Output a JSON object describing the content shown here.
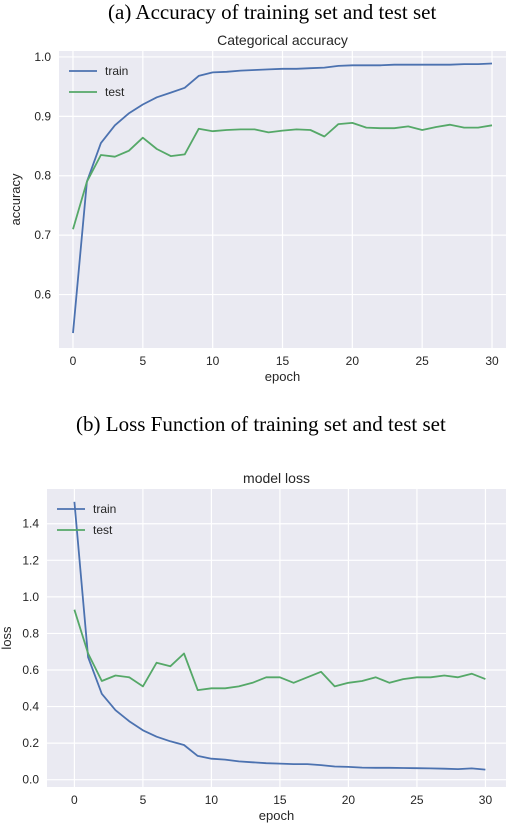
{
  "captions": {
    "a": "(a) Accuracy of training set and test set",
    "b": "(b)   Loss Function of training set and test set"
  },
  "colors": {
    "train": "#4c72b0",
    "test": "#55a868",
    "plot_bg": "#eaeaf2",
    "grid": "#ffffff"
  },
  "chart_data": [
    {
      "type": "line",
      "title": "Categorical accuracy",
      "xlabel": "epoch",
      "ylabel": "accuracy",
      "xlim": [
        -1,
        31
      ],
      "ylim": [
        0.51,
        1.01
      ],
      "xticks": [
        0,
        5,
        10,
        15,
        20,
        25,
        30
      ],
      "yticks": [
        0.6,
        0.7,
        0.8,
        0.9,
        1.0
      ],
      "ytick_labels": [
        "0.6",
        "0.7",
        "0.8",
        "0.9",
        "1.0"
      ],
      "grid": true,
      "legend": "top-left",
      "x": [
        0,
        1,
        2,
        3,
        4,
        5,
        6,
        7,
        8,
        9,
        10,
        11,
        12,
        13,
        14,
        15,
        16,
        17,
        18,
        19,
        20,
        21,
        22,
        23,
        24,
        25,
        26,
        27,
        28,
        29,
        30
      ],
      "series": [
        {
          "name": "train",
          "values": [
            0.535,
            0.79,
            0.855,
            0.885,
            0.905,
            0.92,
            0.932,
            0.94,
            0.948,
            0.968,
            0.974,
            0.975,
            0.977,
            0.978,
            0.979,
            0.98,
            0.98,
            0.981,
            0.982,
            0.985,
            0.986,
            0.986,
            0.986,
            0.987,
            0.987,
            0.987,
            0.987,
            0.987,
            0.988,
            0.988,
            0.989
          ]
        },
        {
          "name": "test",
          "values": [
            0.71,
            0.79,
            0.835,
            0.832,
            0.842,
            0.864,
            0.845,
            0.833,
            0.836,
            0.879,
            0.875,
            0.877,
            0.878,
            0.878,
            0.873,
            0.876,
            0.878,
            0.877,
            0.866,
            0.887,
            0.889,
            0.881,
            0.88,
            0.88,
            0.883,
            0.877,
            0.882,
            0.886,
            0.881,
            0.881,
            0.885
          ]
        }
      ]
    },
    {
      "type": "line",
      "title": "model loss",
      "xlabel": "epoch",
      "ylabel": "loss",
      "xlim": [
        -2,
        31.5
      ],
      "ylim": [
        -0.04,
        1.59
      ],
      "xticks": [
        0,
        5,
        10,
        15,
        20,
        25,
        30
      ],
      "yticks": [
        0.0,
        0.2,
        0.4,
        0.6,
        0.8,
        1.0,
        1.2,
        1.4
      ],
      "ytick_labels": [
        "0.0",
        "0.2",
        "0.4",
        "0.6",
        "0.8",
        "1.0",
        "1.2",
        "1.4"
      ],
      "grid": true,
      "legend": "top-left",
      "x": [
        0,
        1,
        2,
        3,
        4,
        5,
        6,
        7,
        8,
        9,
        10,
        11,
        12,
        13,
        14,
        15,
        16,
        17,
        18,
        19,
        20,
        21,
        22,
        23,
        24,
        25,
        26,
        27,
        28,
        29,
        30
      ],
      "series": [
        {
          "name": "train",
          "values": [
            1.52,
            0.67,
            0.47,
            0.38,
            0.32,
            0.27,
            0.235,
            0.21,
            0.19,
            0.13,
            0.115,
            0.11,
            0.1,
            0.095,
            0.09,
            0.088,
            0.085,
            0.085,
            0.08,
            0.072,
            0.07,
            0.066,
            0.065,
            0.065,
            0.064,
            0.063,
            0.062,
            0.06,
            0.058,
            0.062,
            0.055
          ]
        },
        {
          "name": "test",
          "values": [
            0.93,
            0.69,
            0.54,
            0.57,
            0.56,
            0.51,
            0.64,
            0.62,
            0.69,
            0.49,
            0.5,
            0.5,
            0.51,
            0.53,
            0.56,
            0.56,
            0.53,
            0.56,
            0.59,
            0.51,
            0.53,
            0.54,
            0.56,
            0.53,
            0.55,
            0.56,
            0.56,
            0.57,
            0.56,
            0.58,
            0.55
          ]
        }
      ]
    }
  ]
}
